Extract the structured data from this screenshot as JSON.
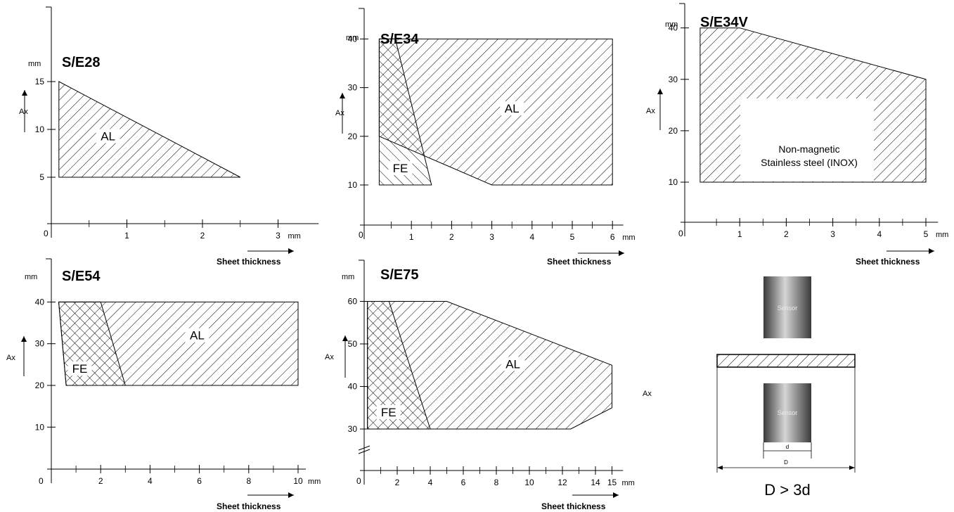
{
  "chart_data": [
    {
      "title": "S/E28",
      "type": "area",
      "x_unit": "mm",
      "y_unit": "mm",
      "ylabel": "Ax",
      "xlabel": "Sheet thickness",
      "x_ticks": [
        1,
        2,
        3
      ],
      "y_ticks": [
        5,
        10,
        15
      ],
      "xlim": [
        0,
        3.5
      ],
      "ylim": [
        0,
        19
      ],
      "series": [
        {
          "name": "AL",
          "pattern": "diag",
          "points": [
            [
              0.1,
              15
            ],
            [
              2.5,
              5
            ],
            [
              0.1,
              5
            ]
          ]
        }
      ]
    },
    {
      "title": "S/E34",
      "type": "area",
      "x_unit": "mm",
      "y_unit": "mm",
      "ylabel": "Ax",
      "xlabel": "Sheet thickness",
      "x_ticks": [
        1,
        2,
        3,
        4,
        5,
        6
      ],
      "y_ticks": [
        10,
        20,
        30,
        40
      ],
      "xlim": [
        0,
        6.2
      ],
      "ylim": [
        0,
        45
      ],
      "series": [
        {
          "name": "AL",
          "pattern": "diag",
          "points": [
            [
              0.2,
              40
            ],
            [
              6,
              40
            ],
            [
              6,
              10
            ],
            [
              3,
              10
            ],
            [
              0.2,
              20
            ]
          ]
        },
        {
          "name": "FE",
          "pattern": "back",
          "points": [
            [
              0.2,
              40
            ],
            [
              0.6,
              40
            ],
            [
              1.5,
              10
            ],
            [
              0.2,
              10
            ]
          ]
        }
      ]
    },
    {
      "title": "S/E34V",
      "type": "area",
      "x_unit": "mm",
      "y_unit": "mm",
      "ylabel": "Ax",
      "xlabel": "Sheet thickness",
      "x_ticks": [
        1,
        2,
        3,
        4,
        5
      ],
      "y_ticks": [
        10,
        20,
        30,
        40
      ],
      "xlim": [
        0,
        5.2
      ],
      "ylim": [
        0,
        46
      ],
      "note": [
        "Non-magnetic",
        "Stainless steel (INOX)"
      ],
      "series": [
        {
          "name": "",
          "pattern": "diag",
          "points": [
            [
              0.15,
              40
            ],
            [
              1,
              40
            ],
            [
              5,
              30
            ],
            [
              5,
              10
            ],
            [
              0.15,
              10
            ]
          ]
        }
      ]
    },
    {
      "title": "S/E54",
      "type": "area",
      "x_unit": "mm",
      "y_unit": "mm",
      "ylabel": "Ax",
      "xlabel": "Sheet thickness",
      "x_ticks": [
        2,
        4,
        6,
        8,
        10
      ],
      "y_ticks": [
        10,
        20,
        30,
        40
      ],
      "xlim": [
        0,
        10.2
      ],
      "ylim": [
        0,
        44
      ],
      "series": [
        {
          "name": "AL",
          "pattern": "diag",
          "points": [
            [
              0.3,
              40
            ],
            [
              10,
              40
            ],
            [
              10,
              20
            ],
            [
              0.6,
              20
            ]
          ]
        },
        {
          "name": "FE",
          "pattern": "back",
          "points": [
            [
              0.3,
              40
            ],
            [
              2,
              40
            ],
            [
              3,
              20
            ],
            [
              0.6,
              20
            ]
          ]
        }
      ]
    },
    {
      "title": "S/E75",
      "type": "area",
      "x_unit": "mm",
      "y_unit": "mm",
      "ylabel": "Ax",
      "xlabel": "Sheet thickness",
      "x_ticks": [
        2,
        4,
        6,
        8,
        10,
        12,
        14,
        15
      ],
      "y_ticks": [
        30,
        40,
        50,
        60
      ],
      "xlim": [
        0,
        15.5
      ],
      "ylim": [
        30,
        63
      ],
      "axis_break": true,
      "series": [
        {
          "name": "AL",
          "pattern": "diag",
          "points": [
            [
              0.2,
              60
            ],
            [
              5,
              60
            ],
            [
              15,
              45
            ],
            [
              15,
              35
            ],
            [
              12.5,
              30
            ],
            [
              0.2,
              30
            ]
          ]
        },
        {
          "name": "FE",
          "pattern": "back",
          "points": [
            [
              0.2,
              60
            ],
            [
              1.5,
              60
            ],
            [
              4,
              30
            ],
            [
              0.2,
              30
            ]
          ]
        }
      ]
    }
  ],
  "labels": {
    "origin": "0",
    "mm": "mm",
    "axis": "Ax",
    "sheet_thickness": "Sheet thickness",
    "stray_axis": "Ax"
  },
  "sensor_diagram": {
    "sensor_label": "Sensor",
    "d_label": "d",
    "D_label": "D",
    "formula": "D > 3d",
    "colors": {
      "sensor_dark": "#3a3a3a",
      "sensor_light": "#d6d6d6"
    }
  }
}
